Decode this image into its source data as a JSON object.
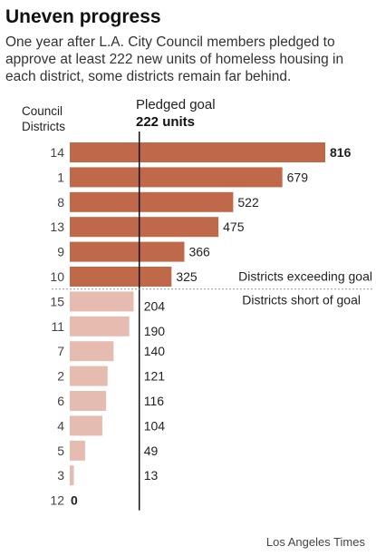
{
  "title": "Uneven progress",
  "subtitle": "One year after L.A. City Council members pledged to approve at least 222 new units of homeless housing in each district, some districts remain far behind.",
  "credit": "Los Angeles Times",
  "chart_data": {
    "type": "bar",
    "orientation": "horizontal",
    "ylabel_lines": [
      "Council",
      "Districts"
    ],
    "categories": [
      "14",
      "1",
      "8",
      "13",
      "9",
      "10",
      "15",
      "11",
      "7",
      "2",
      "6",
      "4",
      "5",
      "3",
      "12"
    ],
    "values": [
      816,
      679,
      522,
      475,
      366,
      325,
      204,
      190,
      140,
      121,
      116,
      104,
      49,
      13,
      0
    ],
    "xlim": [
      0,
      816
    ],
    "grid": false,
    "reference_line": {
      "value": 222,
      "label": "Pledged goal",
      "value_label": "222 units"
    },
    "groups": {
      "exceeding": {
        "label": "Districts exceeding goal",
        "color": "#c0694a"
      },
      "short": {
        "label": "Districts short of goal",
        "color": "#e6bcb0"
      }
    },
    "highlight_max_label": true
  }
}
